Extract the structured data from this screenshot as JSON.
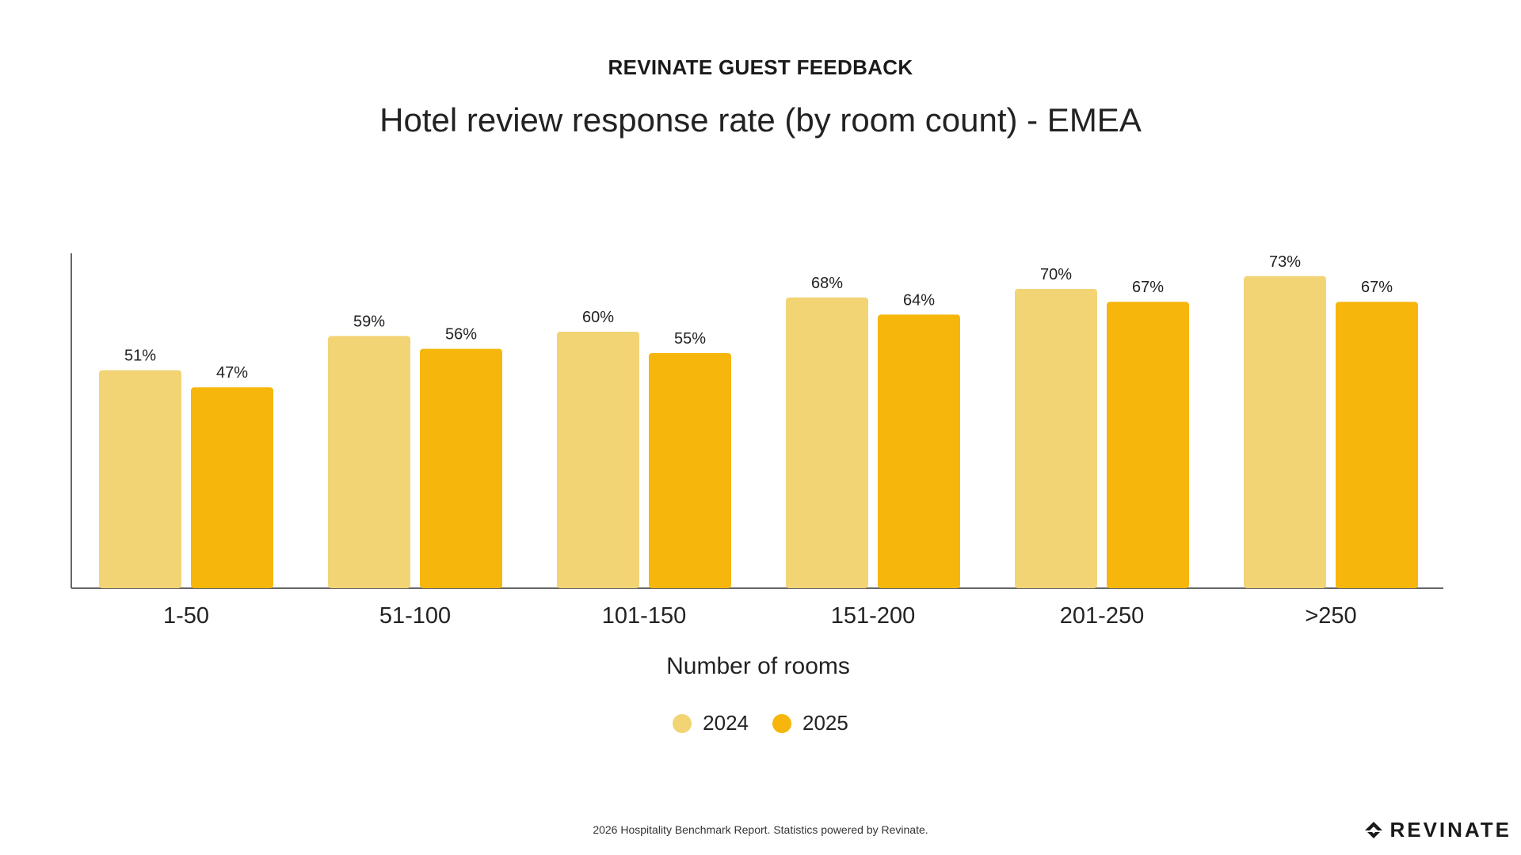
{
  "header": {
    "kicker": "REVINATE GUEST FEEDBACK",
    "title": "Hotel review response rate (by room count) - EMEA"
  },
  "footer": {
    "note": "2026 Hospitality Benchmark Report. Statistics powered by Revinate.",
    "brand": "REVINATE"
  },
  "colors": {
    "series_2024": "#F2D475",
    "series_2025": "#F6B60B",
    "axis": "#666666"
  },
  "chart_data": {
    "type": "bar",
    "title": "Hotel review response rate (by room count) - EMEA",
    "xlabel": "Number of rooms",
    "ylabel": "",
    "ylim": [
      0,
      80
    ],
    "grid": false,
    "legend_position": "bottom-center",
    "categories": [
      "1-50",
      "51-100",
      "101-150",
      "151-200",
      "201-250",
      ">250"
    ],
    "series": [
      {
        "name": "2024",
        "values": [
          51,
          59,
          60,
          68,
          70,
          73
        ],
        "labels": [
          "51%",
          "59%",
          "60%",
          "68%",
          "70%",
          "73%"
        ]
      },
      {
        "name": "2025",
        "values": [
          47,
          56,
          55,
          64,
          67,
          67
        ],
        "labels": [
          "47%",
          "56%",
          "55%",
          "64%",
          "67%",
          "67%"
        ]
      }
    ]
  }
}
